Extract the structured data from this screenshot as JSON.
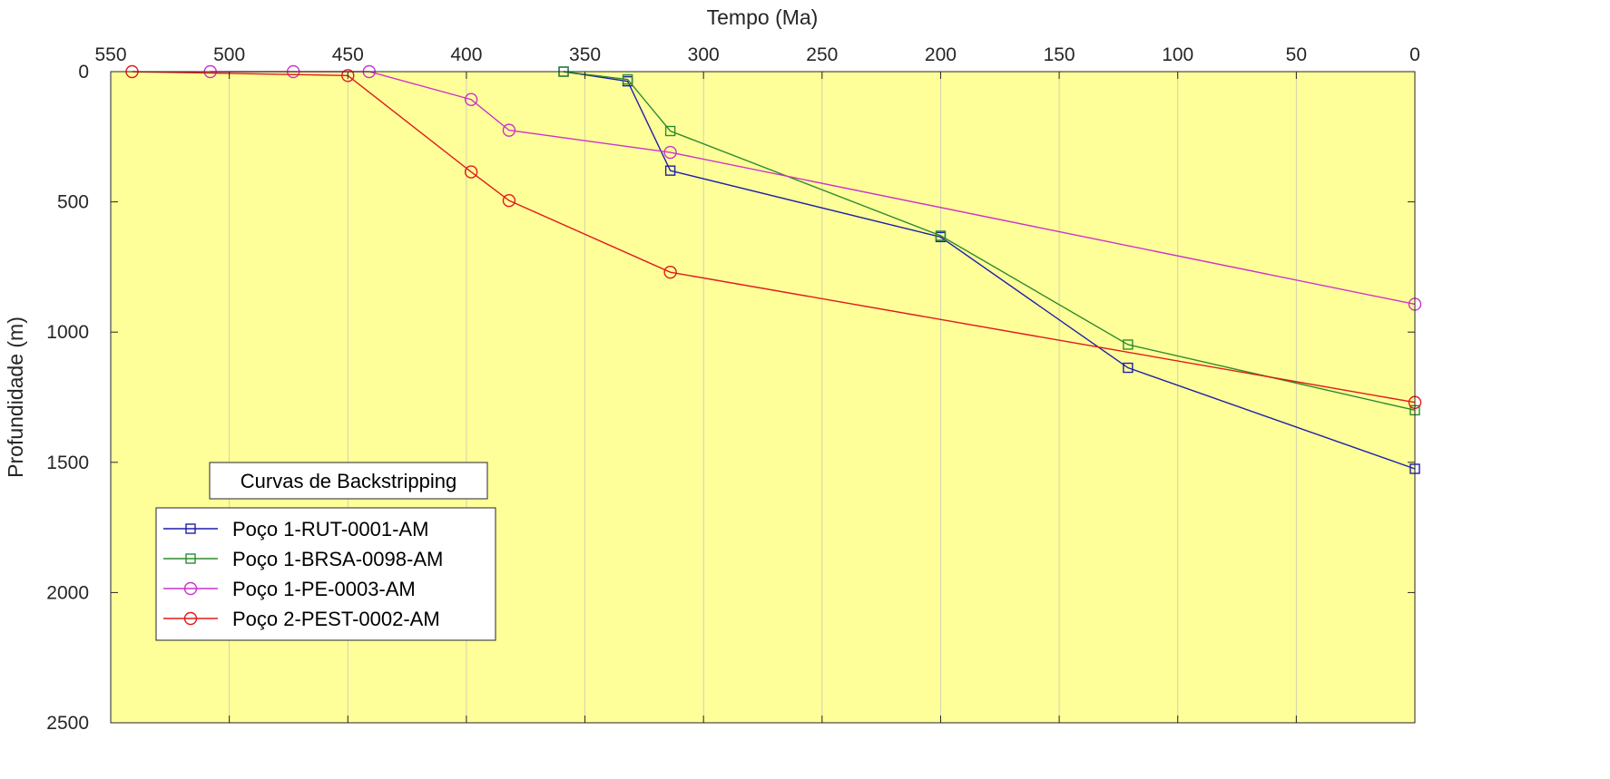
{
  "chart_data": {
    "type": "line",
    "title": "",
    "xlabel": "Tempo (Ma)",
    "ylabel": "Profundidade (m)",
    "xlim": [
      550,
      0
    ],
    "ylim": [
      0,
      2500
    ],
    "x_reversed": true,
    "y_reversed": true,
    "x_axis_location": "top",
    "x_ticks": [
      550,
      500,
      450,
      400,
      350,
      300,
      250,
      200,
      150,
      100,
      50,
      0
    ],
    "y_ticks": [
      0,
      500,
      1000,
      1500,
      2000,
      2500
    ],
    "grid": "vertical",
    "plot_background": "#ffff99",
    "legend_title": "Curvas de Backstripping",
    "legend_location": "bottom-left",
    "series": [
      {
        "name": "Poço 1-RUT-0001-AM",
        "color": "#1f1fa8",
        "marker": "square",
        "x": [
          359,
          332,
          314,
          200,
          121,
          0
        ],
        "y": [
          0,
          37,
          380,
          635,
          1137,
          1525
        ]
      },
      {
        "name": "Poço 1-BRSA-0098-AM",
        "color": "#2e8b2e",
        "marker": "square",
        "x": [
          359,
          332,
          314,
          200,
          121,
          0
        ],
        "y": [
          0,
          30,
          228,
          630,
          1048,
          1300
        ]
      },
      {
        "name": "Poço 1-PE-0003-AM",
        "color": "#cc33cc",
        "marker": "circle",
        "x": [
          508,
          473,
          441,
          398,
          382,
          314,
          0
        ],
        "y": [
          0,
          0,
          0,
          107,
          225,
          310,
          893
        ]
      },
      {
        "name": "Poço 2-PEST-0002-AM",
        "color": "#e01a1a",
        "marker": "circle",
        "x": [
          541,
          450,
          398,
          382,
          314,
          0
        ],
        "y": [
          0,
          15,
          385,
          495,
          770,
          1270
        ]
      }
    ]
  }
}
